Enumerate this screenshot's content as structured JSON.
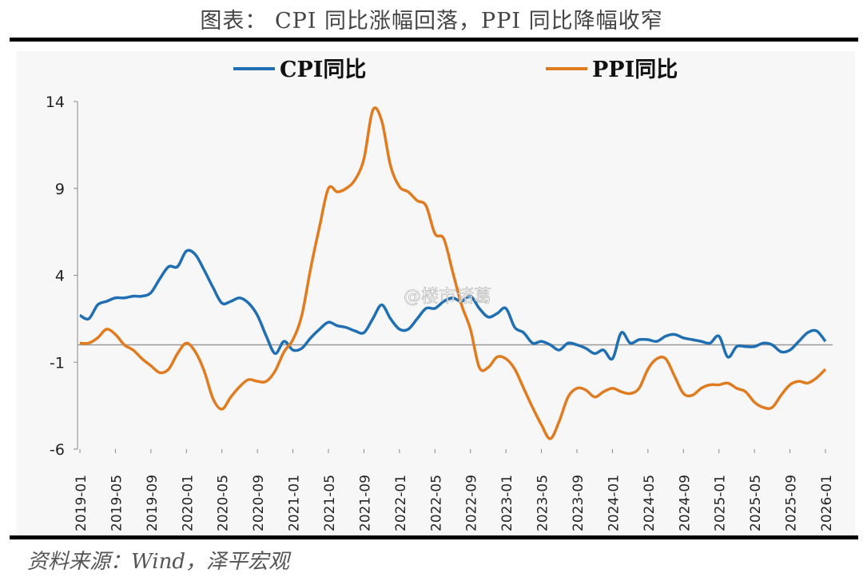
{
  "title": "图表： CPI 同比涨幅回落，PPI 同比降幅收窄",
  "source": "资料来源：Wind，泽平宏观",
  "watermark": "@楼市诸葛",
  "chart_data": {
    "type": "line",
    "title": "图表： CPI 同比涨幅回落，PPI 同比降幅收窄",
    "xlabel": "",
    "ylabel": "",
    "ylim": [
      -6,
      14
    ],
    "yticks": [
      "14",
      "9",
      "4",
      "-1",
      "-6"
    ],
    "ytick_values": [
      14,
      9,
      4,
      -1,
      -6
    ],
    "xtick_labels": [
      "2019-01",
      "2019-05",
      "2019-09",
      "2020-01",
      "2020-05",
      "2020-09",
      "2021-01",
      "2021-05",
      "2021-09",
      "2022-01",
      "2022-05",
      "2022-09",
      "2023-01",
      "2023-05",
      "2023-09",
      "2024-01",
      "2024-05",
      "2024-09",
      "2025-01",
      "2025-05",
      "2025-09",
      "2026-01"
    ],
    "x_start": "2019-01",
    "x_end": "2026-01",
    "frequency": "monthly",
    "grid": false,
    "zero_line": true,
    "legend_position": "top",
    "series": [
      {
        "name": "CPI同比",
        "color": "#1f6fb2",
        "values": [
          1.7,
          1.5,
          2.3,
          2.5,
          2.7,
          2.7,
          2.8,
          2.8,
          3.0,
          3.8,
          4.5,
          4.5,
          5.4,
          5.2,
          4.3,
          3.3,
          2.4,
          2.5,
          2.7,
          2.4,
          1.7,
          0.5,
          -0.5,
          0.2,
          -0.3,
          -0.2,
          0.4,
          0.9,
          1.3,
          1.1,
          1.0,
          0.8,
          0.7,
          1.5,
          2.3,
          1.5,
          0.9,
          0.9,
          1.5,
          2.1,
          2.1,
          2.5,
          2.7,
          2.5,
          2.8,
          2.1,
          1.6,
          1.8,
          2.1,
          1.0,
          0.7,
          0.1,
          0.2,
          0.0,
          -0.3,
          0.1,
          0.0,
          -0.2,
          -0.5,
          -0.3,
          -0.8,
          0.7,
          0.1,
          0.3,
          0.3,
          0.2,
          0.5,
          0.6,
          0.4,
          0.3,
          0.2,
          0.1,
          0.5,
          -0.7,
          -0.1,
          -0.1,
          -0.1,
          0.1,
          0.0,
          -0.4,
          -0.3,
          0.2,
          0.7,
          0.8,
          0.2
        ]
      },
      {
        "name": "PPI同比",
        "color": "#e07b1f",
        "values": [
          0.1,
          0.1,
          0.4,
          0.9,
          0.6,
          0.0,
          -0.3,
          -0.8,
          -1.2,
          -1.6,
          -1.4,
          -0.5,
          0.1,
          -0.4,
          -1.5,
          -3.1,
          -3.7,
          -3.0,
          -2.4,
          -2.0,
          -2.1,
          -2.1,
          -1.5,
          -0.4,
          0.3,
          1.7,
          4.4,
          6.8,
          9.0,
          8.8,
          9.0,
          9.5,
          10.7,
          13.5,
          12.9,
          10.3,
          9.1,
          8.8,
          8.3,
          8.0,
          6.4,
          6.1,
          4.2,
          2.3,
          0.9,
          -1.3,
          -1.3,
          -0.7,
          -0.8,
          -1.4,
          -2.5,
          -3.6,
          -4.6,
          -5.4,
          -4.4,
          -3.0,
          -2.5,
          -2.6,
          -3.0,
          -2.7,
          -2.5,
          -2.7,
          -2.8,
          -2.5,
          -1.4,
          -0.8,
          -0.8,
          -1.8,
          -2.8,
          -2.9,
          -2.5,
          -2.3,
          -2.3,
          -2.2,
          -2.5,
          -2.7,
          -3.3,
          -3.6,
          -3.6,
          -2.9,
          -2.3,
          -2.1,
          -2.2,
          -1.9,
          -1.4
        ]
      }
    ]
  }
}
